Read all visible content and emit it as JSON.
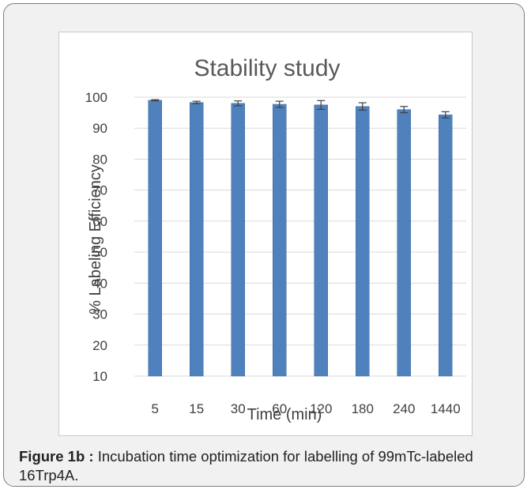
{
  "figure": {
    "caption_label": "Figure 1b :",
    "caption_text": " Incubation time optimization for labelling of 99mTc-labeled 16Trp4A."
  },
  "colors": {
    "bar": "#4f81bd",
    "bar_edge": "#3c6a9f",
    "gridline": "#d9d9d9",
    "text": "#404040",
    "title": "#595959",
    "error_bar": "#404040"
  },
  "chart_data": {
    "type": "bar",
    "title": "Stability study",
    "xlabel": "Time (min)",
    "ylabel": "% Labeling Efficiency",
    "categories": [
      "5",
      "15",
      "30",
      "60",
      "120",
      "180",
      "240",
      "1440"
    ],
    "values": [
      99,
      98.3,
      98,
      97.7,
      97.5,
      97,
      96,
      94.3
    ],
    "errors": [
      0.2,
      0.4,
      0.8,
      1.0,
      1.4,
      1.2,
      1.0,
      1.0
    ],
    "ylim": [
      10,
      100
    ],
    "yticks": [
      "10",
      "20",
      "30",
      "40",
      "50",
      "60",
      "70",
      "80",
      "90",
      "100"
    ],
    "grid": true,
    "legend": "none"
  }
}
